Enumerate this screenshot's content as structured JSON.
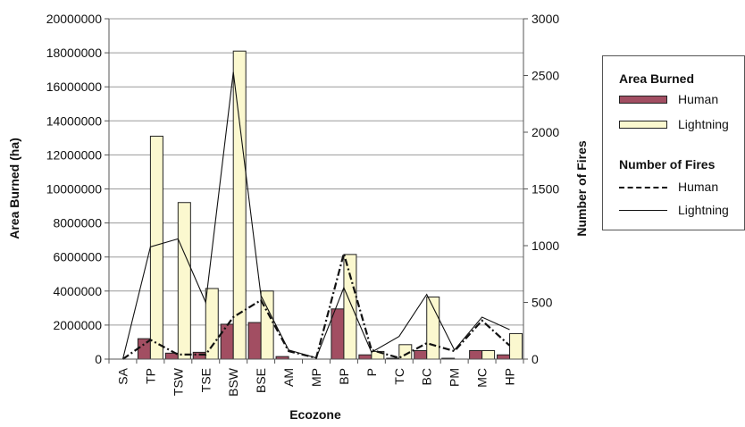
{
  "chart_data": {
    "type": "bar",
    "xlabel": "Ecozone",
    "ylabel": "Area Burned (ha)",
    "y2label": "Number of Fires",
    "categories": [
      "SA",
      "TP",
      "TSW",
      "TSE",
      "BSW",
      "BSE",
      "AM",
      "MP",
      "BP",
      "P",
      "TC",
      "BC",
      "PM",
      "MC",
      "HP"
    ],
    "ylim": [
      0,
      20000000
    ],
    "y2lim": [
      0,
      3000
    ],
    "yticks": [
      "0",
      "2000000",
      "4000000",
      "6000000",
      "8000000",
      "10000000",
      "12000000",
      "14000000",
      "16000000",
      "18000000",
      "20000000"
    ],
    "y2ticks": [
      "0",
      "500",
      "1000",
      "1500",
      "2000",
      "2500",
      "3000"
    ],
    "grid": true,
    "legend_position": "right",
    "legend": {
      "area_heading": "Area Burned",
      "fires_heading": "Number of Fires",
      "human": "Human",
      "lightning": "Lightning"
    },
    "colors": {
      "human_bar": "#a24e62",
      "lightning_bar": "#fbf8cf",
      "line": "#111111"
    },
    "bar_series": [
      {
        "name": "Human",
        "axis": "left",
        "values": [
          0,
          1200000,
          350000,
          400000,
          2050000,
          2150000,
          150000,
          0,
          2950000,
          250000,
          50000,
          500000,
          50000,
          500000,
          250000
        ]
      },
      {
        "name": "Lightning",
        "axis": "left",
        "values": [
          0,
          13100000,
          9200000,
          4150000,
          18100000,
          4000000,
          0,
          0,
          6150000,
          450000,
          850000,
          3650000,
          0,
          500000,
          1500000
        ]
      }
    ],
    "line_series": [
      {
        "name": "Human",
        "axis": "right",
        "style": "dash-dot",
        "values": [
          0,
          170,
          40,
          40,
          370,
          520,
          70,
          10,
          930,
          80,
          10,
          140,
          70,
          340,
          120
        ]
      },
      {
        "name": "Lightning",
        "axis": "right",
        "style": "solid",
        "values": [
          0,
          990,
          1060,
          500,
          2530,
          560,
          80,
          10,
          630,
          60,
          200,
          570,
          80,
          370,
          260
        ]
      }
    ]
  }
}
